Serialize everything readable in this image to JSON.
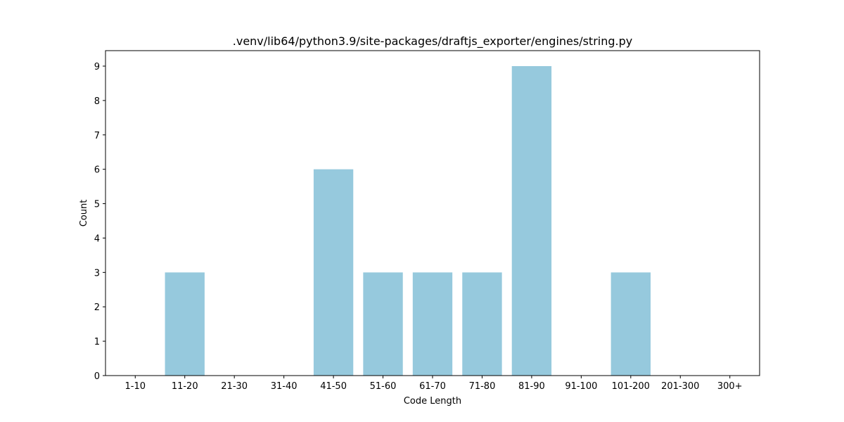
{
  "chart_data": {
    "type": "bar",
    "title": ".venv/lib64/python3.9/site-packages/draftjs_exporter/engines/string.py",
    "xlabel": "Code Length",
    "ylabel": "Count",
    "categories": [
      "1-10",
      "11-20",
      "21-30",
      "31-40",
      "41-50",
      "51-60",
      "61-70",
      "71-80",
      "81-90",
      "91-100",
      "101-200",
      "201-300",
      "300+"
    ],
    "values": [
      0,
      3,
      0,
      0,
      6,
      3,
      3,
      3,
      9,
      0,
      3,
      0,
      0
    ],
    "ylim": [
      0,
      9.45
    ],
    "yticks": [
      "0",
      "1",
      "2",
      "3",
      "4",
      "5",
      "6",
      "7",
      "8",
      "9"
    ],
    "bar_color": "#96c9dd",
    "grid": false,
    "legend": "none"
  }
}
